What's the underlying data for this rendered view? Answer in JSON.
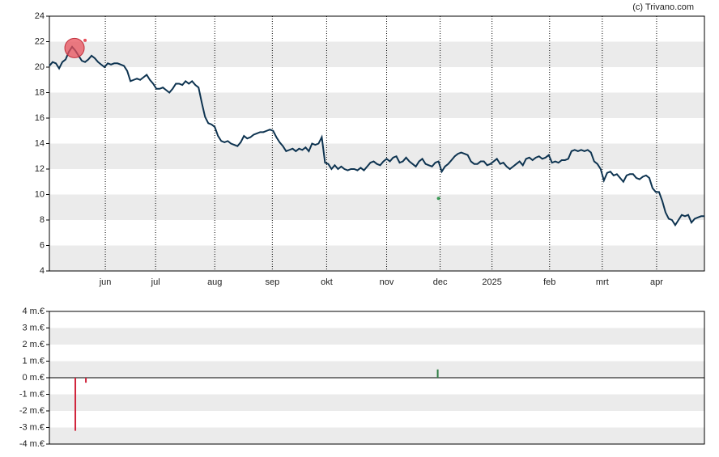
{
  "source": "(c) Trivano.com",
  "chart_data": [
    {
      "type": "line",
      "color": "#0d3350",
      "grid": true,
      "xlim": [
        0,
        202
      ],
      "ylim": [
        4,
        24
      ],
      "yticks": [
        4,
        6,
        8,
        10,
        12,
        14,
        16,
        18,
        20,
        22,
        24
      ],
      "xticks": [
        {
          "value": 17.25,
          "label": "jun"
        },
        {
          "value": 32.75,
          "label": "jul"
        },
        {
          "value": 51,
          "label": "aug"
        },
        {
          "value": 68.75,
          "label": "sep"
        },
        {
          "value": 85.5,
          "label": "okt"
        },
        {
          "value": 104,
          "label": "nov"
        },
        {
          "value": 120.5,
          "label": "dec"
        },
        {
          "value": 136.5,
          "label": "2025"
        },
        {
          "value": 154.25,
          "label": "feb"
        },
        {
          "value": 170.5,
          "label": "mrt"
        },
        {
          "value": 187.25,
          "label": "apr"
        }
      ],
      "values": [
        20.1,
        20.4,
        20.3,
        19.9,
        20.4,
        20.6,
        21.2,
        21.6,
        21.3,
        20.9,
        20.5,
        20.4,
        20.6,
        20.9,
        20.7,
        20.4,
        20.2,
        20.0,
        20.3,
        20.2,
        20.3,
        20.3,
        20.2,
        20.1,
        19.7,
        18.9,
        19.0,
        19.1,
        19.0,
        19.2,
        19.4,
        19.0,
        18.7,
        18.3,
        18.3,
        18.4,
        18.2,
        18.0,
        18.3,
        18.7,
        18.7,
        18.6,
        18.9,
        18.7,
        18.9,
        18.6,
        18.4,
        17.2,
        16.1,
        15.6,
        15.5,
        15.3,
        14.6,
        14.2,
        14.1,
        14.2,
        14.0,
        13.9,
        13.8,
        14.1,
        14.6,
        14.4,
        14.5,
        14.7,
        14.8,
        14.9,
        14.9,
        15.0,
        15.1,
        15.0,
        14.5,
        14.1,
        13.8,
        13.4,
        13.5,
        13.6,
        13.4,
        13.6,
        13.5,
        13.7,
        13.4,
        14.0,
        13.9,
        14.0,
        14.5,
        12.5,
        12.4,
        12.0,
        12.3,
        12.0,
        12.2,
        12.0,
        11.9,
        12.0,
        12.0,
        11.9,
        12.1,
        11.9,
        12.2,
        12.5,
        12.6,
        12.4,
        12.3,
        12.6,
        12.8,
        12.6,
        12.9,
        13.0,
        12.5,
        12.6,
        12.9,
        12.6,
        12.4,
        12.2,
        12.6,
        12.8,
        12.4,
        12.3,
        12.2,
        12.5,
        12.6,
        11.8,
        12.2,
        12.4,
        12.7,
        13.0,
        13.2,
        13.3,
        13.2,
        13.1,
        12.6,
        12.4,
        12.4,
        12.6,
        12.6,
        12.3,
        12.4,
        12.6,
        12.8,
        12.4,
        12.5,
        12.2,
        12.0,
        12.2,
        12.4,
        12.6,
        12.3,
        12.8,
        12.9,
        12.7,
        12.9,
        13.0,
        12.8,
        12.9,
        13.1,
        12.5,
        12.6,
        12.5,
        12.7,
        12.7,
        12.8,
        13.4,
        13.5,
        13.4,
        13.5,
        13.4,
        13.5,
        13.3,
        12.6,
        12.4,
        12.0,
        11.1,
        11.7,
        11.8,
        11.5,
        11.6,
        11.3,
        11.0,
        11.5,
        11.6,
        11.6,
        11.3,
        11.2,
        11.4,
        11.5,
        11.3,
        10.5,
        10.2,
        10.2,
        9.5,
        8.6,
        8.1,
        8.0,
        7.6,
        8.0,
        8.4,
        8.3,
        8.4,
        7.8,
        8.1,
        8.2,
        8.3,
        8.3
      ],
      "events": [
        {
          "x": 7.75,
          "y": 21.5,
          "color": "#e8505b"
        },
        {
          "x": 11,
          "y": 22.1,
          "color": "#e8505b"
        },
        {
          "x": 120,
          "y": 9.7,
          "color": "#3a9a55"
        }
      ]
    },
    {
      "type": "bar",
      "grid": true,
      "xlim": [
        0,
        202
      ],
      "ylim": [
        -4,
        4
      ],
      "yticks": [
        {
          "value": -4,
          "label": "-4 m.€"
        },
        {
          "value": -3,
          "label": "-3 m.€"
        },
        {
          "value": -2,
          "label": "-2 m.€"
        },
        {
          "value": -1,
          "label": "-1 m.€"
        },
        {
          "value": 0,
          "label": "0 m.€"
        },
        {
          "value": 1,
          "label": "1 m.€"
        },
        {
          "value": 2,
          "label": "2 m.€"
        },
        {
          "value": 3,
          "label": "3 m.€"
        },
        {
          "value": 4,
          "label": "4 m.€"
        }
      ],
      "x": [
        8,
        11.25,
        119.75
      ],
      "values": [
        -3.2,
        -0.3,
        0.5
      ],
      "colors": [
        "#d0243b",
        "#d0243b",
        "#2e7d44"
      ]
    }
  ]
}
